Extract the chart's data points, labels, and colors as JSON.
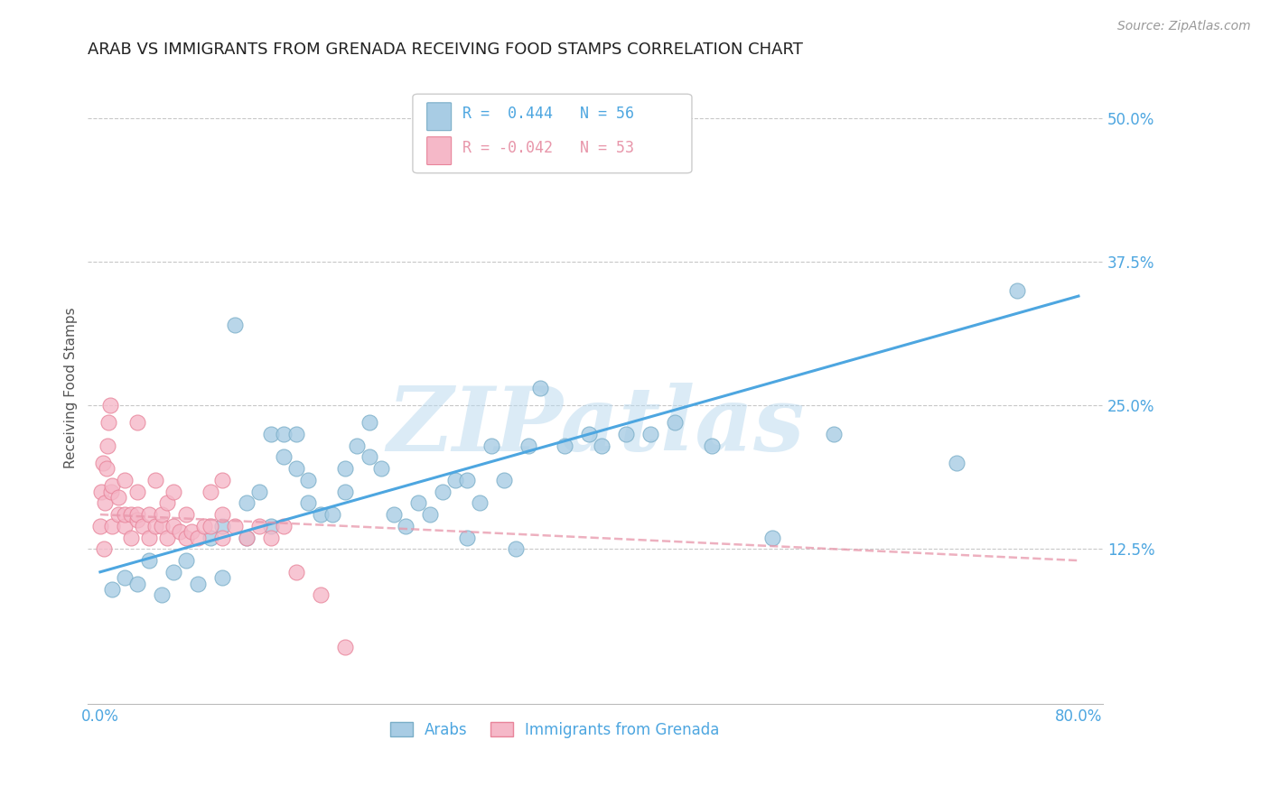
{
  "title": "ARAB VS IMMIGRANTS FROM GRENADA RECEIVING FOOD STAMPS CORRELATION CHART",
  "source": "Source: ZipAtlas.com",
  "ylabel": "Receiving Food Stamps",
  "xlim": [
    -0.01,
    0.82
  ],
  "ylim": [
    -0.01,
    0.54
  ],
  "plot_xlim": [
    0.0,
    0.8
  ],
  "plot_ylim": [
    0.0,
    0.5
  ],
  "xtick_positions": [
    0.0,
    0.8
  ],
  "xtick_labels": [
    "0.0%",
    "80.0%"
  ],
  "yticks_right": [
    0.125,
    0.25,
    0.375,
    0.5
  ],
  "ytick_labels_right": [
    "12.5%",
    "25.0%",
    "37.5%",
    "50.0%"
  ],
  "watermark": "ZIPatlas",
  "arab_color": "#a8cce4",
  "arab_edge": "#7aaec8",
  "grenada_color": "#f5b8c8",
  "grenada_edge": "#e8849a",
  "trend_arab_color": "#4da6e0",
  "trend_grenada_color": "#e896aa",
  "legend_label_arab": "Arabs",
  "legend_label_grenada": "Immigrants from Grenada",
  "title_fontsize": 13,
  "axis_color": "#4da6e0",
  "background_color": "#ffffff",
  "grid_color": "#c8c8c8",
  "arab_x": [
    0.01,
    0.02,
    0.03,
    0.04,
    0.05,
    0.06,
    0.07,
    0.08,
    0.09,
    0.1,
    0.1,
    0.11,
    0.12,
    0.12,
    0.13,
    0.14,
    0.14,
    0.15,
    0.15,
    0.16,
    0.16,
    0.17,
    0.17,
    0.18,
    0.19,
    0.2,
    0.2,
    0.21,
    0.22,
    0.22,
    0.23,
    0.24,
    0.25,
    0.26,
    0.27,
    0.28,
    0.29,
    0.3,
    0.3,
    0.31,
    0.32,
    0.33,
    0.34,
    0.35,
    0.36,
    0.38,
    0.4,
    0.41,
    0.43,
    0.45,
    0.47,
    0.5,
    0.55,
    0.6,
    0.7,
    0.75
  ],
  "arab_y": [
    0.09,
    0.1,
    0.095,
    0.115,
    0.085,
    0.105,
    0.115,
    0.095,
    0.135,
    0.1,
    0.145,
    0.32,
    0.135,
    0.165,
    0.175,
    0.225,
    0.145,
    0.205,
    0.225,
    0.225,
    0.195,
    0.185,
    0.165,
    0.155,
    0.155,
    0.175,
    0.195,
    0.215,
    0.235,
    0.205,
    0.195,
    0.155,
    0.145,
    0.165,
    0.155,
    0.175,
    0.185,
    0.135,
    0.185,
    0.165,
    0.215,
    0.185,
    0.125,
    0.215,
    0.265,
    0.215,
    0.225,
    0.215,
    0.225,
    0.225,
    0.235,
    0.215,
    0.135,
    0.225,
    0.2,
    0.35
  ],
  "grenada_x": [
    0.0,
    0.001,
    0.002,
    0.003,
    0.004,
    0.005,
    0.006,
    0.007,
    0.008,
    0.009,
    0.01,
    0.01,
    0.015,
    0.015,
    0.02,
    0.02,
    0.02,
    0.025,
    0.025,
    0.03,
    0.03,
    0.03,
    0.03,
    0.035,
    0.04,
    0.04,
    0.045,
    0.045,
    0.05,
    0.05,
    0.055,
    0.055,
    0.06,
    0.06,
    0.065,
    0.07,
    0.07,
    0.075,
    0.08,
    0.085,
    0.09,
    0.09,
    0.1,
    0.1,
    0.1,
    0.11,
    0.12,
    0.13,
    0.14,
    0.15,
    0.16,
    0.18,
    0.2
  ],
  "grenada_y": [
    0.145,
    0.175,
    0.2,
    0.125,
    0.165,
    0.195,
    0.215,
    0.235,
    0.25,
    0.175,
    0.145,
    0.18,
    0.17,
    0.155,
    0.145,
    0.155,
    0.185,
    0.155,
    0.135,
    0.15,
    0.155,
    0.175,
    0.235,
    0.145,
    0.135,
    0.155,
    0.145,
    0.185,
    0.145,
    0.155,
    0.135,
    0.165,
    0.145,
    0.175,
    0.14,
    0.135,
    0.155,
    0.14,
    0.135,
    0.145,
    0.145,
    0.175,
    0.135,
    0.155,
    0.185,
    0.145,
    0.135,
    0.145,
    0.135,
    0.145,
    0.105,
    0.085,
    0.04
  ],
  "arab_trend_x": [
    0.0,
    0.8
  ],
  "arab_trend_y": [
    0.105,
    0.345
  ],
  "grenada_trend_x": [
    0.0,
    0.8
  ],
  "grenada_trend_y": [
    0.155,
    0.115
  ]
}
